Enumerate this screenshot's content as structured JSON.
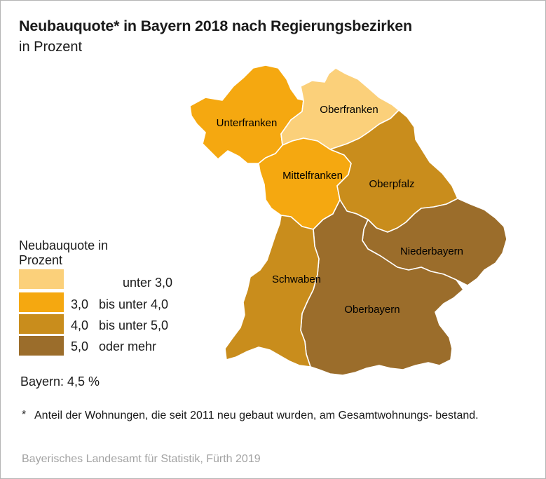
{
  "title": "Neubauquote* in Bayern 2018 nach Regierungsbezirken",
  "subtitle": "in Prozent",
  "colors": {
    "class1": "#fbd07a",
    "class2": "#f5a810",
    "class3": "#c98d1c",
    "class4": "#9b6d2b",
    "border": "#ffffff"
  },
  "regions": [
    {
      "id": "unterfranken",
      "label": "Unterfranken",
      "class": "class2"
    },
    {
      "id": "oberfranken",
      "label": "Oberfranken",
      "class": "class1"
    },
    {
      "id": "mittelfranken",
      "label": "Mittelfranken",
      "class": "class2"
    },
    {
      "id": "oberpfalz",
      "label": "Oberpfalz",
      "class": "class3"
    },
    {
      "id": "schwaben",
      "label": "Schwaben",
      "class": "class3"
    },
    {
      "id": "niederbayern",
      "label": "Niederbayern",
      "class": "class4"
    },
    {
      "id": "oberbayern",
      "label": "Oberbayern",
      "class": "class4"
    }
  ],
  "legend": {
    "title": "Neubauquote in Prozent",
    "items": [
      {
        "num": "",
        "text": "unter 3,0",
        "class": "class1"
      },
      {
        "num": "3,0",
        "text": "bis unter 4,0",
        "class": "class2"
      },
      {
        "num": "4,0",
        "text": "bis unter 5,0",
        "class": "class3"
      },
      {
        "num": "5,0",
        "text": "oder mehr",
        "class": "class4"
      }
    ]
  },
  "total": "Bayern: 4,5 %",
  "footnote": {
    "marker": "*",
    "text": "Anteil der Wohnungen, die seit 2011 neu gebaut wurden, am Gesamtwohnungs- bestand."
  },
  "source": "Bayerisches Landesamt für Statistik, Fürth 2019"
}
